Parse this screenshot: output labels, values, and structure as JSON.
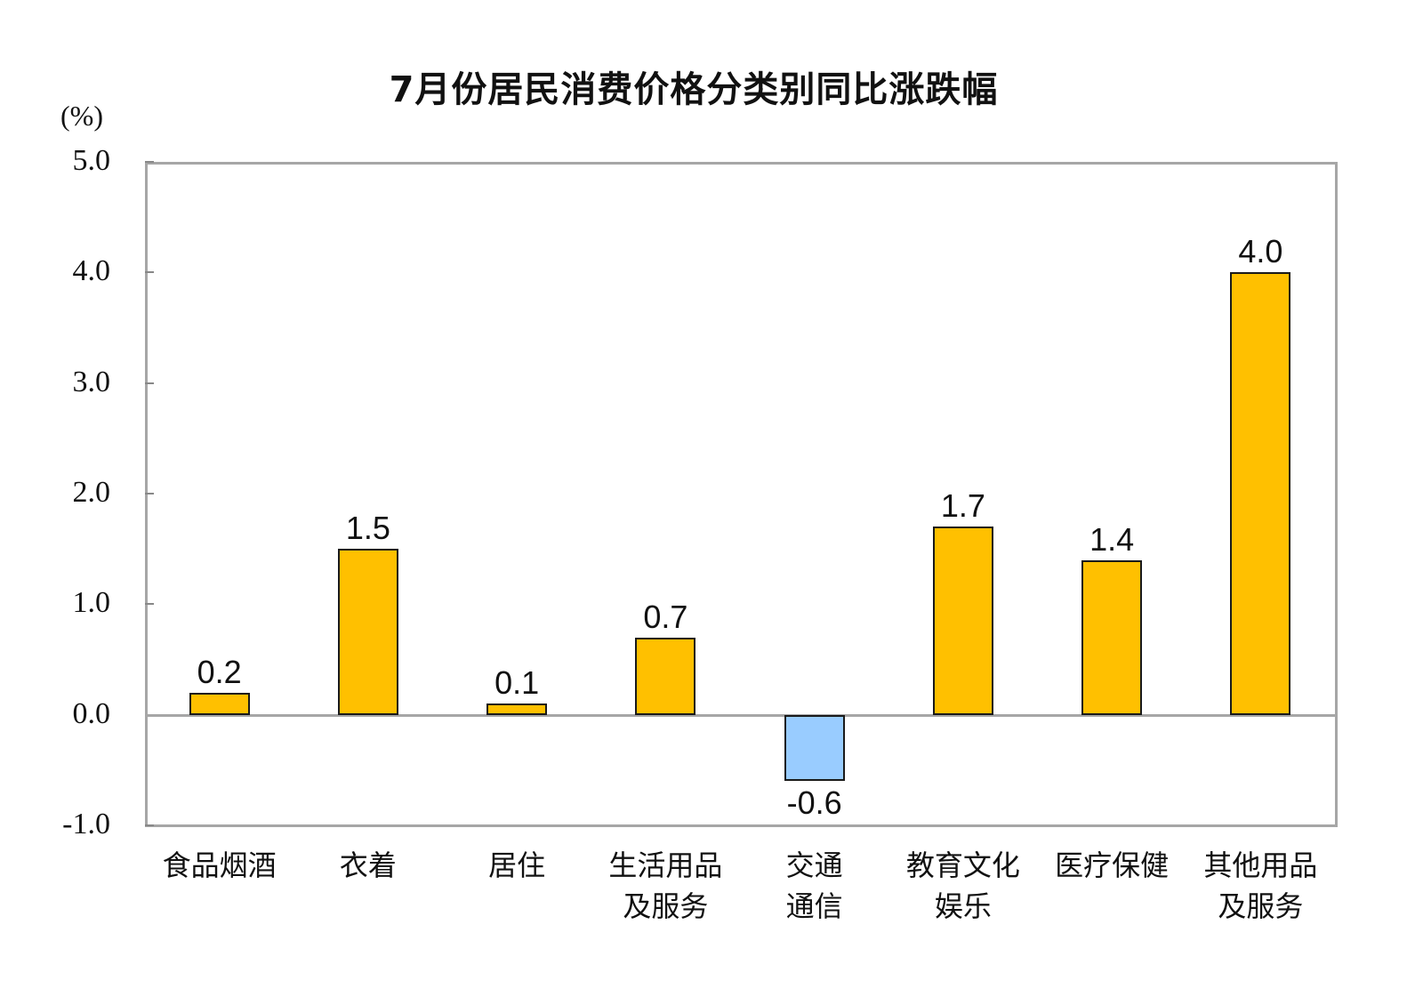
{
  "chart_data": {
    "type": "bar",
    "title": "7月份居民消费价格分类别同比涨跌幅",
    "xlabel": "",
    "ylabel": "(%)",
    "ylim": [
      -1.0,
      5.0
    ],
    "yticks": [
      "5.0",
      "4.0",
      "3.0",
      "2.0",
      "1.0",
      "0.0",
      "-1.0"
    ],
    "grid": false,
    "legend": null,
    "categories": [
      "食品烟酒",
      "衣着",
      "居住",
      "生活用品及服务",
      "交通通信",
      "教育文化娱乐",
      "医疗保健",
      "其他用品及服务"
    ],
    "category_lines": [
      [
        "食品烟酒",
        ""
      ],
      [
        "衣着",
        ""
      ],
      [
        "居住",
        ""
      ],
      [
        "生活用品",
        "及服务"
      ],
      [
        "交通",
        "通信"
      ],
      [
        "教育文化",
        "娱乐"
      ],
      [
        "医疗保健",
        ""
      ],
      [
        "其他用品",
        "及服务"
      ]
    ],
    "values": [
      0.2,
      1.5,
      0.1,
      0.7,
      -0.6,
      1.7,
      1.4,
      4.0
    ],
    "value_labels": [
      "0.2",
      "1.5",
      "0.1",
      "0.7",
      "-0.6",
      "1.7",
      "1.4",
      "4.0"
    ],
    "colors": {
      "positive": "#ffc000",
      "negative": "#99ccff",
      "axis": "#a6a6a6",
      "bar_border": "#1a1a1a"
    }
  }
}
